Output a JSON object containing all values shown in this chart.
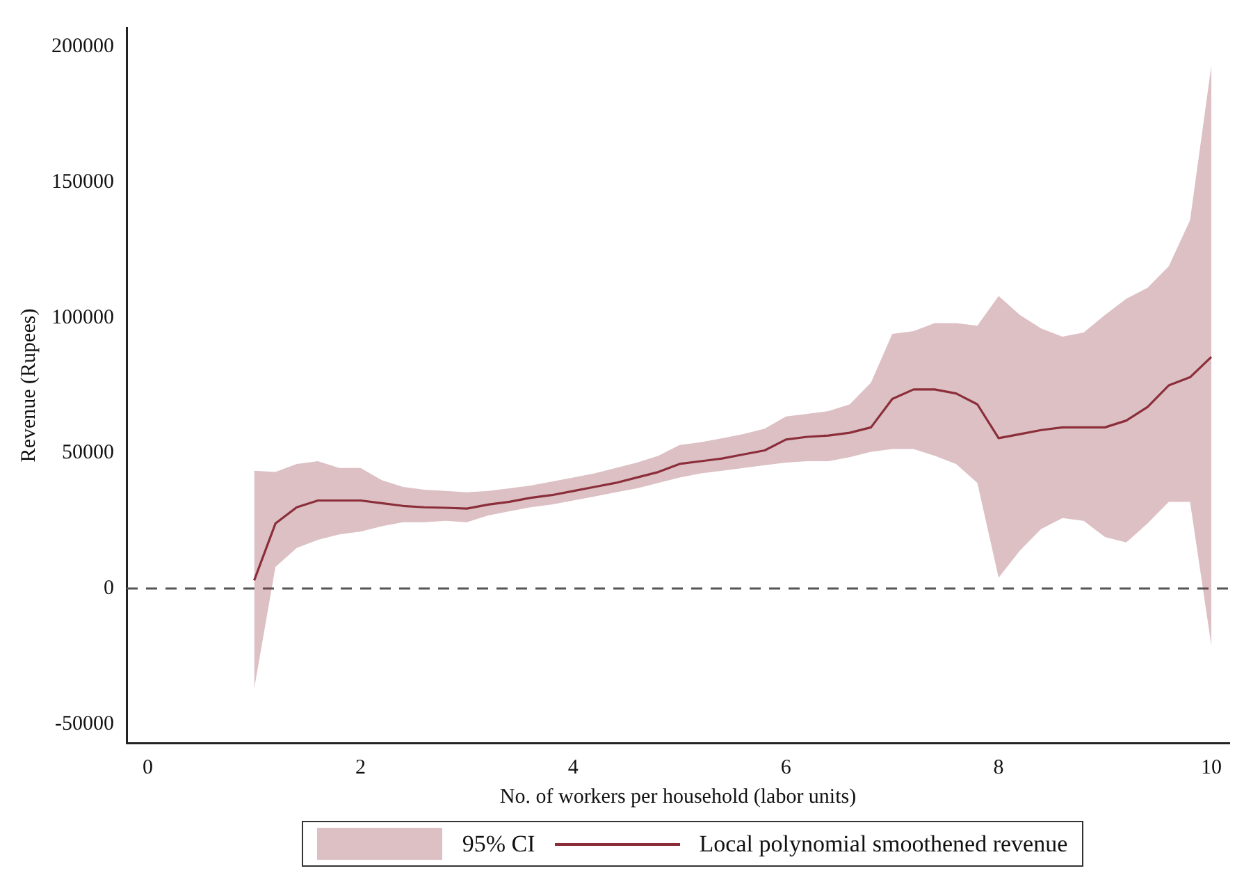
{
  "chart_data": {
    "type": "line",
    "xlabel": "No. of workers per household (labor units)",
    "ylabel": "Revenue (Rupees)",
    "x": [
      1,
      1.2,
      1.4,
      1.6,
      1.8,
      2,
      2.2,
      2.4,
      2.6,
      2.8,
      3,
      3.2,
      3.4,
      3.6,
      3.8,
      4,
      4.2,
      4.4,
      4.6,
      4.8,
      5,
      5.2,
      5.4,
      5.6,
      5.8,
      6,
      6.2,
      6.4,
      6.6,
      6.8,
      7,
      7.2,
      7.4,
      7.6,
      7.8,
      8,
      8.2,
      8.4,
      8.6,
      8.8,
      9,
      9.2,
      9.4,
      9.6,
      9.8,
      10
    ],
    "series": [
      {
        "name": "Local polynomial smoothened revenue",
        "color": "#8b2e3a",
        "upper": [
          43500,
          43000,
          46000,
          47000,
          44500,
          44500,
          40000,
          37500,
          36500,
          36000,
          35500,
          36000,
          37000,
          38000,
          39500,
          41000,
          42500,
          44500,
          46500,
          49000,
          53000,
          54000,
          55500,
          57000,
          59000,
          63500,
          64500,
          65500,
          68000,
          76000,
          94000,
          95000,
          98000,
          98000,
          97000,
          108000,
          101000,
          96000,
          93000,
          94500,
          101000,
          107000,
          111000,
          119000,
          136000,
          193000
        ],
        "lower": [
          -37000,
          8000,
          15000,
          18000,
          20000,
          21000,
          23000,
          24500,
          24500,
          25000,
          24500,
          27000,
          28500,
          30000,
          31000,
          32500,
          34000,
          35500,
          37000,
          39000,
          41000,
          42500,
          43500,
          44500,
          45500,
          46500,
          47000,
          47000,
          48500,
          50500,
          51500,
          51500,
          49000,
          46000,
          39000,
          4000,
          14000,
          22000,
          26000,
          25000,
          19000,
          17000,
          24000,
          32000,
          32000,
          -21000
        ],
        "values": [
          3000,
          24000,
          30000,
          32500,
          32500,
          32500,
          31500,
          30500,
          30000,
          29800,
          29500,
          31000,
          32000,
          33500,
          34500,
          36000,
          37500,
          39000,
          41000,
          43000,
          46000,
          47000,
          48000,
          49500,
          51000,
          55000,
          56000,
          56500,
          57500,
          59500,
          70000,
          73500,
          73500,
          72000,
          68000,
          55500,
          57000,
          58500,
          59500,
          59500,
          59500,
          62000,
          67000,
          75000,
          78000,
          85500
        ]
      }
    ],
    "xlim": [
      -0.2,
      10.17
    ],
    "xticks": [
      0,
      2,
      4,
      6,
      8,
      10
    ],
    "ylim": [
      -57000,
      207000
    ],
    "yticks": [
      -50000,
      0,
      50000,
      100000,
      150000,
      200000
    ],
    "ref_lines": [
      {
        "axis": "y",
        "value": 0,
        "color": "#555555",
        "line_style": "dashed"
      }
    ],
    "annotations": [
      "95% CI"
    ],
    "grid": false,
    "legend": "bottom",
    "marker": "none",
    "line_style": "solid"
  }
}
